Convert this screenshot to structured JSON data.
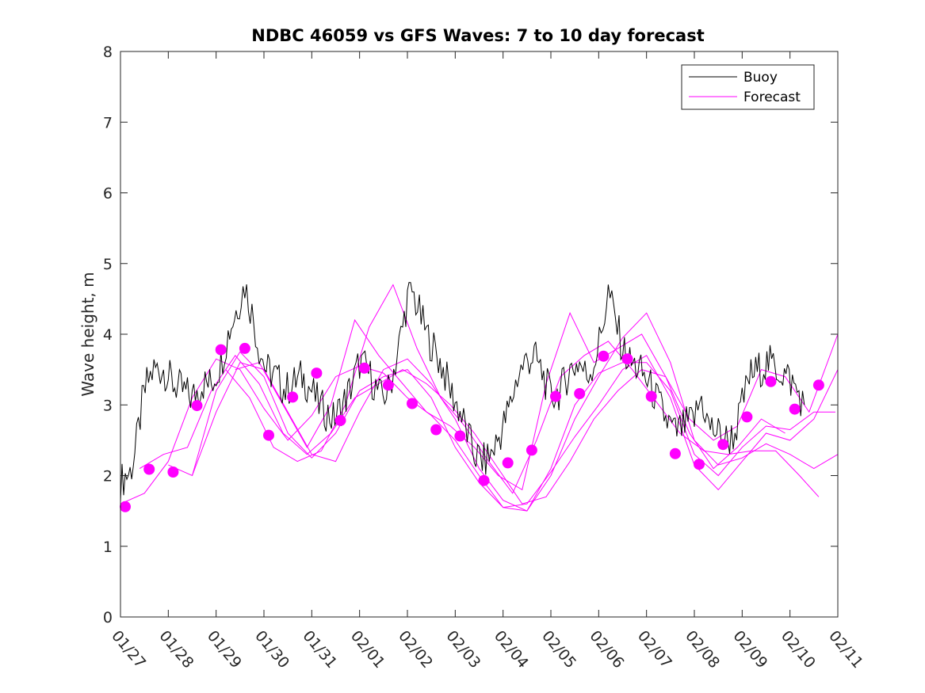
{
  "chart_data": {
    "type": "line",
    "title": "NDBC 46059 vs GFS Waves: 7 to 10 day forecast",
    "xlabel": "",
    "ylabel": "Wave height, m",
    "xlim": [
      0,
      15
    ],
    "ylim": [
      0,
      8
    ],
    "y_ticks": [
      "0",
      "1",
      "2",
      "3",
      "4",
      "5",
      "6",
      "7",
      "8"
    ],
    "x_tick_labels": [
      "01/27",
      "01/28",
      "01/29",
      "01/30",
      "01/31",
      "02/01",
      "02/02",
      "02/03",
      "02/04",
      "02/05",
      "02/06",
      "02/07",
      "02/08",
      "02/09",
      "02/10",
      "02/11"
    ],
    "grid": false,
    "legend": {
      "position": "top-right",
      "entries": [
        "Buoy",
        "Forecast"
      ]
    },
    "colors": {
      "buoy": "#000000",
      "forecast": "#ff00ff"
    },
    "buoy": {
      "name": "Buoy",
      "x": [
        0.0,
        0.1,
        0.2,
        0.3,
        0.45,
        0.55,
        0.7,
        0.9,
        1.1,
        1.3,
        1.5,
        1.7,
        1.9,
        2.1,
        2.25,
        2.45,
        2.6,
        2.75,
        2.9,
        3.05,
        3.25,
        3.45,
        3.6,
        3.8,
        4.0,
        4.15,
        4.3,
        4.45,
        4.65,
        4.85,
        5.0,
        5.15,
        5.3,
        5.45,
        5.6,
        5.75,
        5.9,
        6.0,
        6.1,
        6.25,
        6.4,
        6.55,
        6.75,
        6.9,
        7.1,
        7.25,
        7.4,
        7.6,
        7.75,
        7.95,
        8.15,
        8.3,
        8.45,
        8.65,
        8.85,
        9.0,
        9.2,
        9.4,
        9.6,
        9.75,
        9.9,
        10.05,
        10.2,
        10.35,
        10.5,
        10.65,
        10.85,
        11.05,
        11.2,
        11.4,
        11.6,
        11.8,
        12.0,
        12.15,
        12.3,
        12.5,
        12.7,
        12.85,
        13.0,
        13.15,
        13.35,
        13.55,
        13.75,
        13.95,
        14.15,
        14.3
      ],
      "y": [
        1.9,
        2.0,
        2.05,
        2.3,
        3.0,
        3.3,
        3.5,
        3.5,
        3.3,
        3.2,
        3.1,
        3.3,
        3.3,
        3.6,
        4.0,
        4.4,
        4.7,
        4.3,
        3.8,
        3.5,
        3.4,
        3.2,
        3.3,
        3.4,
        3.2,
        3.0,
        2.9,
        2.8,
        3.0,
        3.3,
        3.6,
        3.5,
        3.3,
        3.1,
        3.2,
        3.6,
        4.1,
        4.5,
        4.6,
        4.3,
        4.0,
        3.8,
        3.5,
        3.2,
        2.9,
        2.6,
        2.3,
        2.2,
        2.3,
        2.6,
        3.0,
        3.4,
        3.6,
        3.7,
        3.4,
        3.1,
        3.2,
        3.5,
        3.6,
        3.4,
        3.6,
        4.0,
        4.6,
        4.2,
        3.8,
        3.6,
        3.5,
        3.3,
        3.1,
        2.8,
        2.6,
        2.7,
        2.8,
        3.1,
        2.7,
        2.6,
        2.5,
        2.6,
        3.0,
        3.4,
        3.5,
        3.6,
        3.5,
        3.4,
        3.2,
        3.0
      ]
    },
    "forecast_series": [
      {
        "name": "Forecast",
        "x": [
          0.0,
          0.5,
          1.0,
          1.5,
          2.0,
          2.5,
          3.0,
          3.5,
          4.0,
          4.5,
          5.0,
          5.5,
          6.0,
          6.5,
          7.0,
          7.5,
          8.0,
          8.5,
          9.0,
          9.5,
          10.0,
          10.5,
          11.0,
          11.5,
          12.0,
          12.5,
          13.0,
          13.5,
          14.0,
          14.5,
          15.0
        ],
        "y": [
          1.6,
          1.75,
          2.2,
          3.1,
          3.65,
          3.5,
          2.95,
          2.5,
          2.85,
          3.4,
          3.55,
          3.45,
          3.1,
          2.85,
          2.5,
          2.0,
          1.55,
          1.6,
          2.05,
          2.55,
          3.0,
          3.5,
          3.7,
          3.1,
          2.15,
          1.8,
          2.2,
          2.6,
          2.5,
          2.8,
          3.5
        ]
      },
      {
        "name": "Forecast",
        "x": [
          0.4,
          0.9,
          1.4,
          1.9,
          2.4,
          2.9,
          3.4,
          3.9,
          4.4,
          4.9,
          5.4,
          5.9,
          6.4,
          6.9,
          7.4,
          7.9,
          8.4,
          8.9,
          9.4,
          9.9,
          10.4,
          10.9,
          11.4,
          11.9,
          12.4,
          12.9,
          13.4,
          13.9
        ],
        "y": [
          2.1,
          2.3,
          2.4,
          3.2,
          3.7,
          3.3,
          2.6,
          2.3,
          2.6,
          3.1,
          3.3,
          3.5,
          3.3,
          3.0,
          2.6,
          2.1,
          1.6,
          1.7,
          2.2,
          2.8,
          3.2,
          3.5,
          3.4,
          2.6,
          2.1,
          2.4,
          2.8,
          2.6
        ]
      },
      {
        "name": "Forecast",
        "x": [
          1.0,
          1.5,
          2.0,
          2.5,
          3.0,
          3.5,
          4.0,
          4.5,
          5.0,
          5.5,
          6.0,
          6.5,
          7.0,
          7.5,
          8.0,
          8.5,
          9.0,
          9.5,
          10.0,
          10.5,
          11.0,
          11.5,
          12.0,
          12.5,
          13.0,
          13.5,
          14.0,
          14.5,
          15.0
        ],
        "y": [
          2.15,
          2.0,
          2.9,
          3.6,
          3.5,
          2.9,
          2.3,
          2.2,
          2.9,
          3.5,
          3.65,
          3.3,
          2.8,
          2.1,
          1.65,
          1.5,
          2.0,
          2.8,
          3.4,
          3.95,
          4.3,
          3.6,
          2.5,
          2.15,
          2.25,
          2.45,
          2.3,
          2.1,
          2.3
        ]
      },
      {
        "name": "Forecast",
        "x": [
          1.5,
          2.0,
          2.5,
          3.0,
          3.5,
          4.0,
          4.5,
          5.0,
          5.5,
          6.0,
          6.5,
          7.0,
          7.5,
          8.0,
          8.5,
          9.0,
          9.5,
          10.0,
          10.5,
          11.0,
          11.5,
          12.0,
          12.5,
          13.0,
          13.5,
          14.0,
          14.5,
          14.95
        ],
        "y": [
          2.0,
          3.2,
          3.75,
          3.4,
          2.6,
          2.25,
          2.6,
          3.2,
          3.4,
          3.5,
          3.1,
          2.4,
          1.9,
          1.55,
          1.5,
          2.1,
          3.0,
          3.45,
          3.6,
          3.6,
          3.2,
          2.3,
          2.0,
          2.4,
          2.7,
          2.65,
          2.9,
          2.9
        ]
      },
      {
        "name": "Forecast",
        "x": [
          2.2,
          2.7,
          3.2,
          3.7,
          4.2,
          4.7,
          5.2,
          5.7,
          6.2,
          6.7,
          7.2,
          7.7,
          8.2,
          8.7,
          9.2,
          9.7,
          10.2,
          10.7,
          11.2,
          11.7,
          12.2,
          12.7,
          13.2,
          13.7,
          14.2,
          14.6
        ],
        "y": [
          3.5,
          3.1,
          2.4,
          2.2,
          2.35,
          3.0,
          4.1,
          4.7,
          3.8,
          3.1,
          2.7,
          2.2,
          1.75,
          2.5,
          3.4,
          3.7,
          3.9,
          3.5,
          3.05,
          2.6,
          2.35,
          2.3,
          2.35,
          2.35,
          2.0,
          1.7
        ]
      },
      {
        "name": "Forecast",
        "x": [
          2.4,
          2.9,
          3.4,
          3.9,
          4.4,
          4.9,
          5.4,
          5.9,
          6.4,
          6.9,
          7.4,
          7.9,
          8.4,
          8.9,
          9.4,
          9.9,
          10.4,
          10.9,
          11.4,
          11.9,
          12.4,
          12.9,
          13.4,
          13.9,
          14.4,
          15.0
        ],
        "y": [
          3.5,
          3.6,
          3.0,
          2.4,
          3.0,
          4.2,
          3.7,
          3.3,
          2.9,
          2.7,
          2.4,
          2.0,
          1.8,
          3.3,
          4.3,
          3.6,
          3.8,
          4.0,
          3.4,
          2.8,
          2.5,
          2.7,
          3.5,
          3.4,
          2.9,
          4.0
        ]
      }
    ],
    "forecast_points": {
      "x": [
        0.1,
        0.6,
        1.1,
        1.6,
        2.1,
        2.6,
        3.1,
        3.6,
        4.1,
        4.6,
        5.1,
        5.6,
        6.1,
        6.6,
        7.1,
        7.6,
        8.1,
        8.6,
        9.1,
        9.6,
        10.1,
        10.6,
        11.1,
        11.6,
        12.1,
        12.6,
        13.1,
        13.6,
        14.1,
        14.6
      ],
      "y": [
        1.56,
        2.09,
        2.05,
        2.99,
        3.78,
        3.8,
        2.57,
        3.11,
        3.45,
        2.78,
        3.52,
        3.28,
        3.02,
        2.65,
        2.56,
        1.93,
        2.18,
        2.36,
        3.12,
        3.16,
        3.69,
        3.65,
        3.12,
        2.31,
        2.16,
        2.44,
        2.83,
        3.33,
        2.94,
        3.28
      ]
    }
  }
}
